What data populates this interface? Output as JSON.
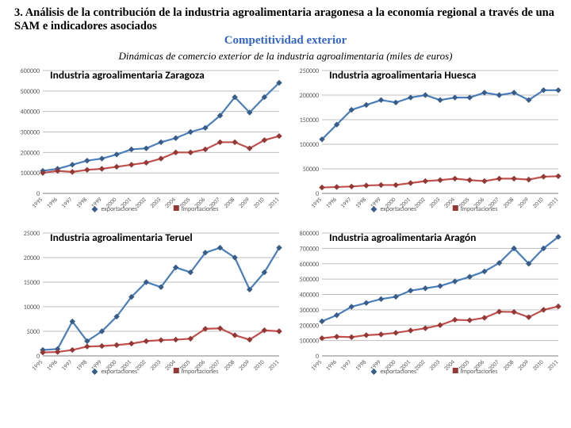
{
  "header": {
    "title": "3. Análisis de la contribución de la industria agroalimentaria aragonesa a la economía regional a través de una SAM e indicadores asociados",
    "subtitle": "Competitividad exterior",
    "caption": "Dinámicas de comercio exterior de la industria agroalimentaria (miles de euros)"
  },
  "years": [
    "1995",
    "1996",
    "1997",
    "1998",
    "1999",
    "2000",
    "2001",
    "2002",
    "2003",
    "2004",
    "2005",
    "2006",
    "2007",
    "2008",
    "2009",
    "2010",
    "2011"
  ],
  "series_names": {
    "exp": "exportaciones",
    "imp": "importaciones"
  },
  "colors": {
    "exp_line": "#4a7ebb",
    "exp_marker": "#385d8a",
    "imp_line": "#c0504d",
    "imp_marker": "#953735",
    "grid": "#bfbfbf",
    "axis": "#808080",
    "text": "#595959"
  },
  "chart_style": {
    "line_width": 2.2,
    "marker_radius": 3,
    "grid_width": 1,
    "tick_fontsize": 8,
    "xlabel_fontsize": 7.5,
    "title_fontsize": 13.5,
    "xlabel_rotation": -45
  },
  "charts": [
    {
      "key": "zaragoza",
      "title": "Industria agroalimentaria Zaragoza",
      "ylim": [
        0,
        600000
      ],
      "ytick_step": 100000,
      "exp": [
        110000,
        120000,
        140000,
        160000,
        170000,
        190000,
        215000,
        220000,
        250000,
        270000,
        300000,
        320000,
        380000,
        470000,
        395000,
        470000,
        540000
      ],
      "imp": [
        100000,
        110000,
        105000,
        115000,
        120000,
        130000,
        140000,
        150000,
        170000,
        200000,
        200000,
        215000,
        250000,
        250000,
        220000,
        260000,
        280000
      ]
    },
    {
      "key": "huesca",
      "title": "Industria agroalimentaria Huesca",
      "ylim": [
        0,
        250000
      ],
      "ytick_step": 50000,
      "exp": [
        110000,
        140000,
        170000,
        180000,
        190000,
        185000,
        195000,
        200000,
        190000,
        195000,
        195000,
        205000,
        200000,
        205000,
        190000,
        210000,
        210000
      ],
      "imp": [
        12000,
        13000,
        14000,
        16000,
        17000,
        17000,
        21000,
        25000,
        27000,
        30000,
        27000,
        25000,
        30000,
        30000,
        28000,
        34000,
        35000
      ]
    },
    {
      "key": "teruel",
      "title": "Industria agroalimentaria Teruel",
      "ylim": [
        0,
        25000
      ],
      "ytick_step": 5000,
      "exp": [
        1200,
        1400,
        7000,
        3000,
        5000,
        8000,
        12000,
        15000,
        14000,
        18000,
        17000,
        21000,
        22000,
        20000,
        13500,
        17000,
        22000
      ],
      "imp": [
        700,
        800,
        1200,
        1900,
        2000,
        2200,
        2500,
        3000,
        3200,
        3300,
        3500,
        5500,
        5600,
        4200,
        3300,
        5200,
        5000
      ]
    },
    {
      "key": "aragon",
      "title": "Industria agroalimentaria Aragón",
      "ylim": [
        0,
        800000
      ],
      "ytick_step": 100000,
      "exp": [
        225000,
        265000,
        320000,
        345000,
        370000,
        385000,
        425000,
        440000,
        455000,
        485000,
        515000,
        550000,
        605000,
        700000,
        600000,
        700000,
        775000
      ],
      "imp": [
        115000,
        125000,
        122000,
        135000,
        140000,
        150000,
        165000,
        180000,
        200000,
        235000,
        232000,
        248000,
        288000,
        286000,
        252000,
        300000,
        322000
      ]
    }
  ]
}
